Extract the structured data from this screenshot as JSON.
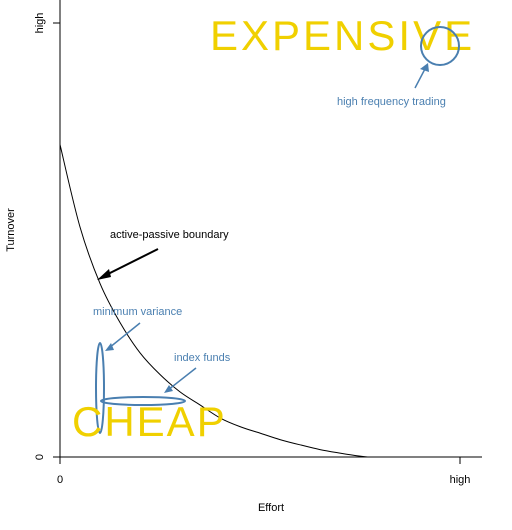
{
  "chart_data": {
    "type": "line",
    "title": "",
    "xlabel": "Effort",
    "ylabel": "Turnover",
    "x_ticks": [
      "0",
      "high"
    ],
    "y_ticks": [
      "0",
      "high"
    ],
    "xlim": [
      0,
      1
    ],
    "ylim": [
      0,
      1
    ],
    "series": [
      {
        "x": [
          0.0,
          0.05,
          0.1,
          0.15,
          0.2,
          0.25,
          0.3,
          0.35,
          0.4,
          0.45,
          0.5,
          0.55,
          0.6,
          0.65,
          0.7,
          0.75,
          0.77
        ],
        "y": [
          0.72,
          0.53,
          0.4,
          0.31,
          0.24,
          0.19,
          0.15,
          0.12,
          0.09,
          0.07,
          0.055,
          0.04,
          0.028,
          0.017,
          0.009,
          0.002,
          0.0
        ]
      }
    ],
    "annotations": [
      {
        "text": "EXPENSIVE",
        "color": "#f0d000"
      },
      {
        "text": "CHEAP",
        "color": "#f0d000"
      },
      {
        "text": "high frequency trading",
        "color": "#4a7fb0"
      },
      {
        "text": "active-passive boundary",
        "color": "#000000"
      },
      {
        "text": "minimum variance",
        "color": "#4a7fb0"
      },
      {
        "text": "index funds",
        "color": "#4a7fb0"
      }
    ],
    "grid": false,
    "legend": "none"
  }
}
